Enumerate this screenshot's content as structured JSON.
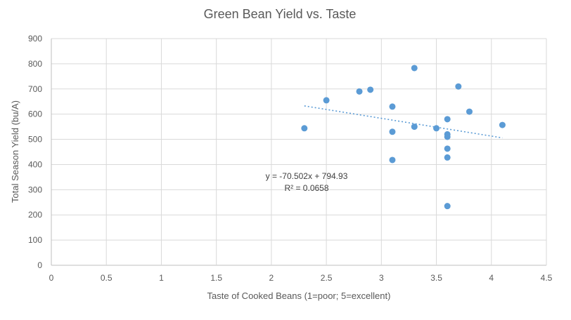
{
  "chart_data": {
    "type": "scatter",
    "title": "Green Bean Yield vs. Taste",
    "xlabel": "Taste of Cooked Beans (1=poor; 5=excellent)",
    "ylabel": "Total Season Yield (bu/A)",
    "xlim": [
      0,
      4.5
    ],
    "ylim": [
      0,
      900
    ],
    "x_ticks": [
      "0",
      "0.5",
      "1",
      "1.5",
      "2",
      "2.5",
      "3",
      "3.5",
      "4",
      "4.5"
    ],
    "y_ticks": [
      "0",
      "100",
      "200",
      "300",
      "400",
      "500",
      "600",
      "700",
      "800",
      "900"
    ],
    "grid": true,
    "legend": "none",
    "marker_color": "#5B9BD5",
    "series": [
      {
        "points": [
          [
            2.3,
            544
          ],
          [
            2.5,
            655
          ],
          [
            2.8,
            690
          ],
          [
            2.9,
            697
          ],
          [
            3.1,
            630
          ],
          [
            3.1,
            530
          ],
          [
            3.1,
            418
          ],
          [
            3.3,
            783
          ],
          [
            3.3,
            550
          ],
          [
            3.5,
            544
          ],
          [
            3.6,
            580
          ],
          [
            3.6,
            520
          ],
          [
            3.6,
            510
          ],
          [
            3.6,
            463
          ],
          [
            3.6,
            428
          ],
          [
            3.6,
            235
          ],
          [
            3.7,
            710
          ],
          [
            3.8,
            610
          ],
          [
            4.1,
            557
          ]
        ]
      }
    ],
    "trendline": {
      "type": "linear",
      "slope": -70.502,
      "intercept": 794.93,
      "x_range": [
        2.3,
        4.1
      ],
      "equation_text": "y = -70.502x + 794.93",
      "r2_text": "R² = 0.0658",
      "color": "#5B9BD5"
    }
  }
}
